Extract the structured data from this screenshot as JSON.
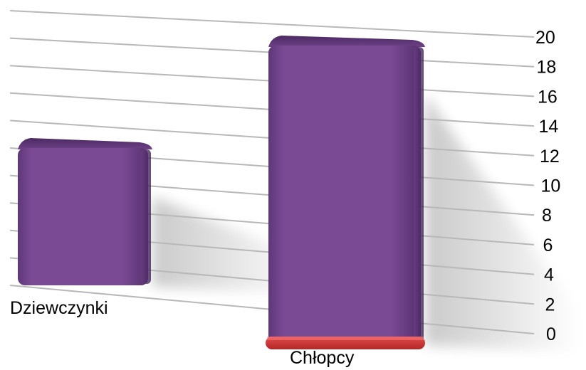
{
  "chart_data": {
    "type": "bar",
    "categories": [
      "Dziewczynki",
      "Chłopcy"
    ],
    "series": [
      {
        "values": [
          12,
          20
        ],
        "color": "#7b4a94"
      },
      {
        "values": [
          0,
          0.5
        ],
        "color": "#d43a3a"
      }
    ],
    "ylim": [
      0,
      20
    ],
    "yticks": [
      "0",
      "2",
      "4",
      "6",
      "8",
      "10",
      "12",
      "14",
      "16",
      "18",
      "20"
    ],
    "grid": true,
    "style": "3d-perspective"
  }
}
